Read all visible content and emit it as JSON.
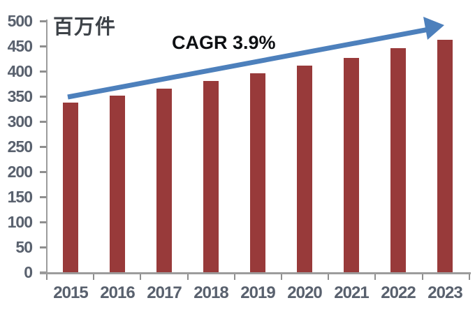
{
  "chart": {
    "unit_label": "百万件",
    "annotation": "CAGR 3.9%",
    "colors": {
      "bar": "#983A3A",
      "arrow": "#4D80BC",
      "axis_text": "#59616E",
      "unit_text": "#3D4248",
      "annotation_text": "#0E1013",
      "axis_line": "#9C9C9C",
      "tick": "#8F8F8F"
    }
  },
  "chart_data": {
    "type": "bar",
    "title": "",
    "unit_label": "百万件",
    "annotation": "CAGR 3.9%",
    "categories": [
      "2015",
      "2016",
      "2017",
      "2018",
      "2019",
      "2020",
      "2021",
      "2022",
      "2023"
    ],
    "values": [
      338,
      352,
      365,
      380,
      396,
      411,
      427,
      446,
      462
    ],
    "xlabel": "",
    "ylabel": "百万件",
    "ylim": [
      0,
      500
    ],
    "y_ticks": [
      0,
      50,
      100,
      150,
      200,
      250,
      300,
      350,
      400,
      450,
      500
    ],
    "grid": false,
    "legend": false,
    "bar_color": "#983A3A",
    "trend_arrow": "rising from first bar to last bar"
  }
}
